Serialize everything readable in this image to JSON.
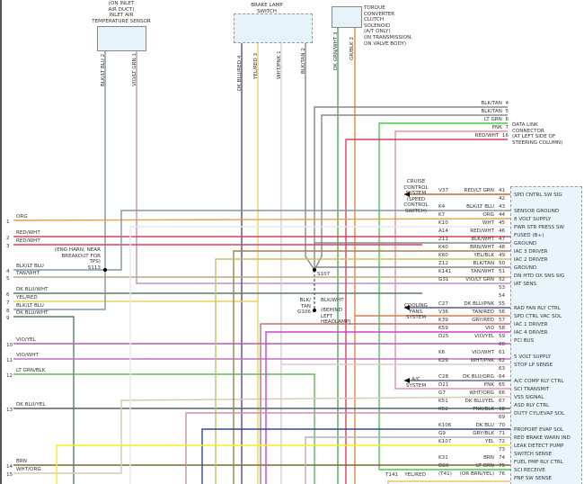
{
  "components": {
    "iat_sensor": {
      "label": [
        "(ON INLET",
        "AIR DUCT)",
        "INLET AIR",
        "TEMPERATURE SENSOR"
      ],
      "pins": [
        {
          "pin": "2",
          "wire": "BLK/LT BLU"
        },
        {
          "pin": "1",
          "wire": "VIO/LT GRN"
        }
      ]
    },
    "brake_switch": {
      "label": [
        "BRAKE LAMP",
        "SWITCH"
      ],
      "pins": [
        {
          "pin": "4",
          "wire": "DK BLU/RED"
        },
        {
          "pin": "3",
          "wire": "YEL/RED"
        },
        {
          "pin": "1",
          "wire": "WHT/PNK"
        },
        {
          "pin": "2",
          "wire": "BLK/TAN"
        }
      ]
    },
    "tcc_solenoid": {
      "label": [
        "TORQUE",
        "CONVERTER",
        "CLUTCH",
        "SOLENOID",
        "(A/T ONLY)",
        "(IN TRANSMISSION,",
        "ON VALVE BODY)"
      ],
      "pins": [
        {
          "pin": "3",
          "wire": "DK GRN/WHT"
        },
        {
          "pin": "2",
          "wire": "GR/BLK"
        }
      ]
    },
    "dlc": {
      "label": [
        "DATA LINK",
        "CONNECTOR",
        "(AT LEFT SIDE OF",
        "STEERING COLUMN)"
      ],
      "pins": [
        {
          "pin": "4",
          "wire": "BLK/TAN"
        },
        {
          "pin": "5",
          "wire": "BLK/TAN"
        },
        {
          "pin": "6",
          "wire": "LT GRN"
        },
        {
          "pin": "7",
          "wire": "PNK"
        },
        {
          "pin": "16",
          "wire": "RED/WHT"
        }
      ]
    }
  },
  "splices": {
    "s113": {
      "label": [
        "(ENG HARN, NEAR",
        "BREAKOUT FOR",
        "TPS)",
        "S113"
      ]
    },
    "s107": {
      "label": "S107"
    },
    "g106": {
      "label": [
        "BLK/",
        "TAN",
        "G106"
      ],
      "wire": "BLK/WHT",
      "note": [
        "(BEHIND",
        "LEFT",
        "HEADLAMP)"
      ]
    }
  },
  "systems": {
    "cruise": [
      "CRUISE",
      "CONTROL",
      "SYSTEM",
      "(SPEED",
      "CONTROL",
      "SWITCH)"
    ],
    "cooling": [
      "COOLING",
      "FANS",
      "SYSTEM"
    ],
    "ac": [
      "A/C",
      "SYSTEM"
    ]
  },
  "left_pins": [
    {
      "pin": "1",
      "wire": "ORG"
    },
    {
      "pin": "2",
      "wire": "RED/WHT"
    },
    {
      "pin": "3",
      "wire": "RED/WHT"
    },
    {
      "pin": "4",
      "wire": "BLK/LT BLU"
    },
    {
      "pin": "5",
      "wire": "TAN/WHT"
    },
    {
      "pin": "6",
      "wire": "DK BLU/WHT"
    },
    {
      "pin": "7",
      "wire": "YEL/RED"
    },
    {
      "pin": "8",
      "wire": "BLK/LT BLU"
    },
    {
      "pin": "9",
      "wire": "DK BLU/WHT"
    },
    {
      "pin": "10",
      "wire": "VIO/YEL"
    },
    {
      "pin": "11",
      "wire": "VIO/WHT"
    },
    {
      "pin": "12",
      "wire": "LT GRN/BLK"
    },
    {
      "pin": "13",
      "wire": "DK BLU/YEL"
    },
    {
      "pin": "14",
      "wire": "BRN"
    },
    {
      "pin": "15",
      "wire": "WHT/ORG"
    }
  ],
  "pcm_pins": [
    {
      "pin": "41",
      "circuit": "V37",
      "wire": "RED/LT GRN",
      "func": "SPD CNTRL SW SIG"
    },
    {
      "pin": "42",
      "circuit": "",
      "wire": "",
      "func": ""
    },
    {
      "pin": "43",
      "circuit": "K4",
      "wire": "BLK/LT BLU",
      "func": "SENSOR GROUND"
    },
    {
      "pin": "44",
      "circuit": "K7",
      "wire": "ORG",
      "func": "8 VOLT SUPPLY"
    },
    {
      "pin": "45",
      "circuit": "K10",
      "wire": "WHT",
      "func": "PWR STR PRESS SW"
    },
    {
      "pin": "46",
      "circuit": "A14",
      "wire": "RED/WHT",
      "func": "FUSED (B+)"
    },
    {
      "pin": "47",
      "circuit": "Z11",
      "wire": "BLK/WHT",
      "func": "GROUND"
    },
    {
      "pin": "48",
      "circuit": "K40",
      "wire": "BRN/WHT",
      "func": "IAC 3 DRIVER"
    },
    {
      "pin": "49",
      "circuit": "K60",
      "wire": "YEL/BLK",
      "func": "IAC 2 DRIVER"
    },
    {
      "pin": "50",
      "circuit": "Z12",
      "wire": "BLK/TAN",
      "func": "GROUND"
    },
    {
      "pin": "51",
      "circuit": "K141",
      "wire": "TAN/WHT",
      "func": "DN HTD OX SNS SIG"
    },
    {
      "pin": "52",
      "circuit": "G31",
      "wire": "VIO/LT GRN",
      "func": "IAT SENS"
    },
    {
      "pin": "53",
      "circuit": "",
      "wire": "",
      "func": ""
    },
    {
      "pin": "54",
      "circuit": "",
      "wire": "",
      "func": ""
    },
    {
      "pin": "55",
      "circuit": "C27",
      "wire": "DK BLU/PNK",
      "func": "RAD FAN RLY CTRL"
    },
    {
      "pin": "56",
      "circuit": "V36",
      "wire": "TAN/RED",
      "func": "SPD CTRL VAC SOL"
    },
    {
      "pin": "57",
      "circuit": "K39",
      "wire": "GRY/RED",
      "func": "IAC 1 DRIVER"
    },
    {
      "pin": "58",
      "circuit": "K59",
      "wire": "VIO",
      "func": "IAC 4 DRIVER"
    },
    {
      "pin": "59",
      "circuit": "D25",
      "wire": "VIO/YEL",
      "func": "PCI BUS"
    },
    {
      "pin": "60",
      "circuit": "",
      "wire": "",
      "func": ""
    },
    {
      "pin": "61",
      "circuit": "K6",
      "wire": "VIO/WHT",
      "func": "5 VOLT SUPPLY"
    },
    {
      "pin": "62",
      "circuit": "K29",
      "wire": "WHT/PNK",
      "func": "STOP LP SENSE"
    },
    {
      "pin": "63",
      "circuit": "",
      "wire": "",
      "func": ""
    },
    {
      "pin": "64",
      "circuit": "C28",
      "wire": "DK BLU/ORG",
      "func": "A/C COMP RLY CTRL"
    },
    {
      "pin": "65",
      "circuit": "D21",
      "wire": "PNK",
      "func": "SCI TRANSMIT"
    },
    {
      "pin": "66",
      "circuit": "G7",
      "wire": "WHT/ORG",
      "func": "VSS SIGNAL"
    },
    {
      "pin": "67",
      "circuit": "K51",
      "wire": "DK BLU/YEL",
      "func": "ASD RLY CTRL"
    },
    {
      "pin": "68",
      "circuit": "K52",
      "wire": "PNK/BLK",
      "func": "DUTY CYL/EVAP SOL"
    },
    {
      "pin": "69",
      "circuit": "",
      "wire": "",
      "func": ""
    },
    {
      "pin": "70",
      "circuit": "K106",
      "wire": "DK BLU",
      "func": "PROPORT EVAP SOL"
    },
    {
      "pin": "71",
      "circuit": "G9",
      "wire": "GRY/BLK",
      "func": "RED BRAKE WARN IND"
    },
    {
      "pin": "72",
      "circuit": "K107",
      "wire": "YEL",
      "func": "LEAK DETECT PUMP"
    },
    {
      "pin": "73",
      "circuit": "",
      "wire": "",
      "func": "SWITCH SENSE"
    },
    {
      "pin": "74",
      "circuit": "K31",
      "wire": "BRN",
      "func": "FUEL PMP RLY CTRL"
    },
    {
      "pin": "75",
      "circuit": "D20",
      "wire": "LT GRN",
      "func": "SCI RECEIVE"
    },
    {
      "pin": "76",
      "circuit": "(T41)",
      "wire": "(OR BRN/YEL)",
      "func": "PNP SW SENSE"
    }
  ],
  "pin76_extra": {
    "circuit": "T141",
    "wire": "YEL/RED"
  },
  "wire_colors": {
    "ORG": "#e0a24a",
    "RED/WHT": "#d2455a",
    "BLK/LT BLU": "#7f97a6",
    "TAN/WHT": "#b8aa88",
    "DK BLU/WHT": "#5a7d66",
    "YEL/RED": "#e8d35a",
    "VIO/YEL": "#b85ab8",
    "VIO/WHT": "#c070c0",
    "LT GRN/BLK": "#60b860",
    "DK BLU/YEL": "#556070",
    "BRN": "#7a6a3a",
    "WHT/ORG": "#d8c8b0",
    "VIO/LT GRN": "#c090c8",
    "DK BLU/RED": "#5a4a7a",
    "WHT/PNK": "#e0c8d0",
    "BLK/TAN": "#888",
    "DK GRN/WHT": "#4cae4c",
    "GR/BLK": "#e08a3a",
    "LT GRN": "#4ccc4c",
    "PNK": "#e890a8",
    "RED/LT GRN": "#b07040",
    "WHT": "#e8e8e8",
    "BLK/WHT": "#888",
    "BRN/WHT": "#a08050",
    "YEL/BLK": "#c8c060",
    "DK BLU/PNK": "#505a90",
    "TAN/RED": "#d08050",
    "GRY/RED": "#c07070",
    "VIO": "#d040d0",
    "DK BLU/ORG": "#6a6a8a",
    "PNK/BLK": "#c890a8",
    "DK BLU": "#304a90",
    "GRY/BLK": "#b0b0b8",
    "YEL": "#f0f020"
  }
}
